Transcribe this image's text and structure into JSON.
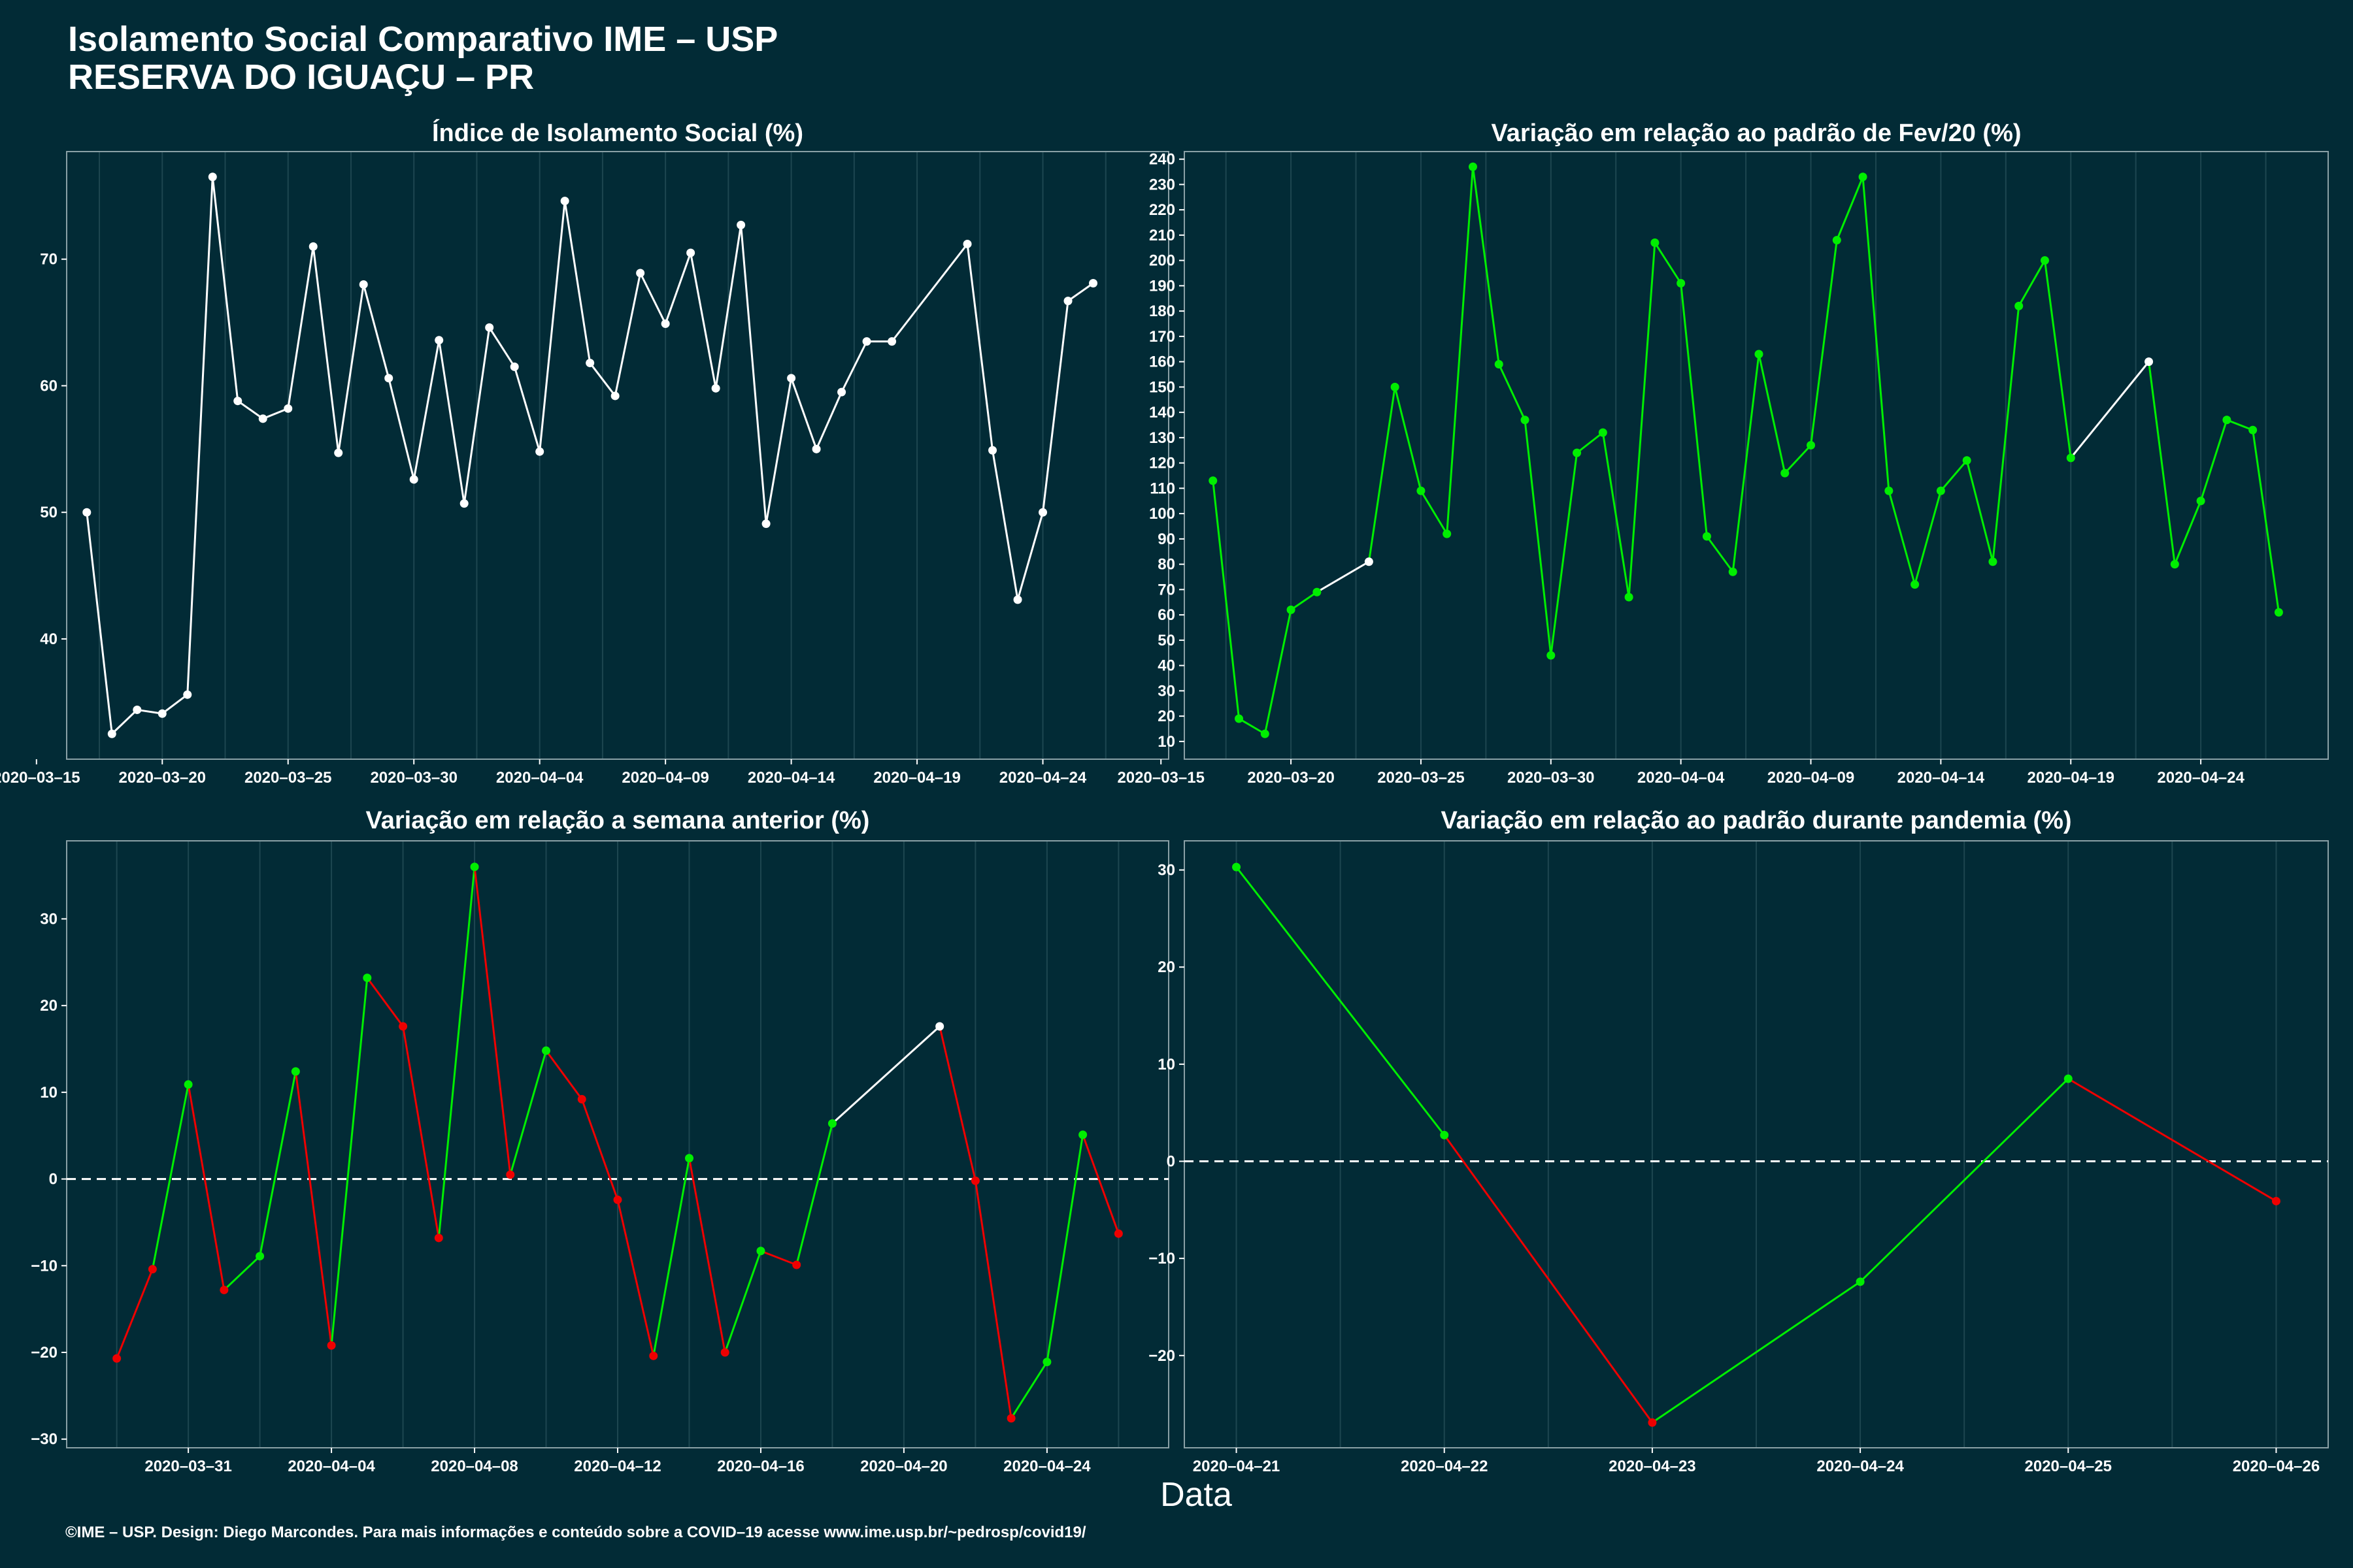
{
  "header": {
    "title_line1": "Isolamento Social Comparativo IME – USP",
    "title_line2": "RESERVA DO IGUAÇU – PR"
  },
  "xlabel": "Data",
  "footer": "©IME – USP. Design: Diego Marcondes. Para mais informações e conteúdo sobre a COVID–19 acesse www.ime.usp.br/~pedrosp/covid19/",
  "colors": {
    "background": "#022b36",
    "white": "#ffffff",
    "green": "#00ee00",
    "red": "#ee0000",
    "grid": "#1d4650"
  },
  "chart_data": [
    {
      "type": "line",
      "title": "Índice de Isolamento Social (%)",
      "x_start": "2020-03-17",
      "x": [
        "2020-03-17",
        "2020-03-18",
        "2020-03-19",
        "2020-03-20",
        "2020-03-21",
        "2020-03-22",
        "2020-03-23",
        "2020-03-24",
        "2020-03-25",
        "2020-03-26",
        "2020-03-27",
        "2020-03-28",
        "2020-03-29",
        "2020-03-30",
        "2020-03-31",
        "2020-04-01",
        "2020-04-02",
        "2020-04-03",
        "2020-04-04",
        "2020-04-05",
        "2020-04-06",
        "2020-04-07",
        "2020-04-08",
        "2020-04-09",
        "2020-04-10",
        "2020-04-11",
        "2020-04-12",
        "2020-04-13",
        "2020-04-14",
        "2020-04-15",
        "2020-04-16",
        "2020-04-17",
        "2020-04-18",
        "2020-04-21",
        "2020-04-22",
        "2020-04-23",
        "2020-04-24",
        "2020-04-25",
        "2020-04-26"
      ],
      "values": [
        50.0,
        32.5,
        34.4,
        34.1,
        35.6,
        76.5,
        58.8,
        57.4,
        58.2,
        71.0,
        54.7,
        68.0,
        60.6,
        52.6,
        63.6,
        50.7,
        64.6,
        61.5,
        54.8,
        74.6,
        61.8,
        59.2,
        68.9,
        64.9,
        70.5,
        59.8,
        72.7,
        49.1,
        60.6,
        55.0,
        59.5,
        63.5,
        63.5,
        71.2,
        54.9,
        43.1,
        50.0,
        66.7,
        68.1
      ],
      "segment_colors": [
        "white"
      ],
      "ylim": [
        30.5,
        78.5
      ],
      "yticks": [
        40,
        50,
        60,
        70
      ],
      "ytick_labels": [
        "40",
        "50",
        "60",
        "70"
      ],
      "xlim": [
        -0.8,
        43.0
      ],
      "xticks": [
        -2,
        3,
        8,
        13,
        18,
        23,
        28,
        33,
        38
      ],
      "xtick_labels": [
        "2020–03–15",
        "2020–03–20",
        "2020–03–25",
        "2020–03–30",
        "2020–04–04",
        "2020–04–09",
        "2020–04–14",
        "2020–04–19",
        "2020–04–24"
      ],
      "grid": true
    },
    {
      "type": "line",
      "title": "Variação em relação ao padrão de Fev/20 (%)",
      "x_start": "2020-03-17",
      "x": [
        "2020-03-17",
        "2020-03-18",
        "2020-03-19",
        "2020-03-20",
        "2020-03-21",
        "2020-03-23",
        "2020-03-24",
        "2020-03-25",
        "2020-03-26",
        "2020-03-27",
        "2020-03-28",
        "2020-03-29",
        "2020-03-30",
        "2020-03-31",
        "2020-04-01",
        "2020-04-02",
        "2020-04-03",
        "2020-04-04",
        "2020-04-05",
        "2020-04-06",
        "2020-04-07",
        "2020-04-08",
        "2020-04-09",
        "2020-04-10",
        "2020-04-11",
        "2020-04-12",
        "2020-04-13",
        "2020-04-14",
        "2020-04-15",
        "2020-04-16",
        "2020-04-17",
        "2020-04-18",
        "2020-04-19",
        "2020-04-22",
        "2020-04-23",
        "2020-04-24",
        "2020-04-25",
        "2020-04-26",
        "2020-04-27"
      ],
      "values": [
        113,
        19,
        13,
        62,
        69,
        81,
        150,
        109,
        92,
        237,
        159,
        137,
        44,
        124,
        132,
        67,
        207,
        191,
        91,
        77,
        163,
        116,
        127,
        208,
        233,
        109,
        72,
        109,
        121,
        81,
        182,
        200,
        122,
        160,
        80,
        105,
        137,
        133,
        61
      ],
      "segment_colors": [
        "green",
        "green",
        "green",
        "green",
        "white",
        "green",
        "green",
        "green",
        "green",
        "green",
        "green",
        "green",
        "green",
        "green",
        "green",
        "green",
        "green",
        "green",
        "green",
        "green",
        "green",
        "green",
        "green",
        "green",
        "green",
        "green",
        "green",
        "green",
        "green",
        "green",
        "green",
        "green",
        "white",
        "green",
        "green",
        "green",
        "green",
        "green"
      ],
      "ylim": [
        3,
        243
      ],
      "yticks": [
        10,
        20,
        30,
        40,
        50,
        60,
        70,
        80,
        90,
        100,
        110,
        120,
        130,
        140,
        150,
        160,
        170,
        180,
        190,
        200,
        210,
        220,
        230,
        240
      ],
      "ytick_labels": [
        "10",
        "20",
        "30",
        "40",
        "50",
        "60",
        "70",
        "80",
        "90",
        "100",
        "110",
        "120",
        "130",
        "140",
        "150",
        "160",
        "170",
        "180",
        "190",
        "200",
        "210",
        "220",
        "230",
        "240"
      ],
      "xlim": [
        -1.1,
        42.9
      ],
      "xticks": [
        -2,
        3,
        8,
        13,
        18,
        23,
        28,
        33,
        38
      ],
      "xtick_labels": [
        "2020–03–15",
        "2020–03–20",
        "2020–03–25",
        "2020–03–30",
        "2020–04–04",
        "2020–04–09",
        "2020–04–14",
        "2020–04–19",
        "2020–04–24"
      ],
      "grid": true
    },
    {
      "type": "line",
      "title": "Variação em relação a semana anterior (%)",
      "x_start": "2020-03-29",
      "x": [
        "2020-03-29",
        "2020-03-30",
        "2020-03-31",
        "2020-04-01",
        "2020-04-02",
        "2020-04-03",
        "2020-04-04",
        "2020-04-05",
        "2020-04-06",
        "2020-04-07",
        "2020-04-08",
        "2020-04-09",
        "2020-04-10",
        "2020-04-11",
        "2020-04-12",
        "2020-04-13",
        "2020-04-14",
        "2020-04-15",
        "2020-04-16",
        "2020-04-17",
        "2020-04-18",
        "2020-04-21",
        "2020-04-22",
        "2020-04-23",
        "2020-04-24",
        "2020-04-25",
        "2020-04-26"
      ],
      "values": [
        -20.7,
        -10.4,
        10.9,
        -12.8,
        -8.9,
        12.4,
        -19.2,
        23.2,
        17.6,
        -6.8,
        36.0,
        0.5,
        14.8,
        9.2,
        -2.4,
        -20.4,
        2.4,
        -20.0,
        -8.3,
        -9.9,
        6.4,
        17.6,
        -0.2,
        -27.6,
        -21.1,
        5.1,
        -6.3
      ],
      "segment_colors": [
        "red",
        "green",
        "red",
        "green",
        "green",
        "red",
        "green",
        "red",
        "red",
        "green",
        "red",
        "green",
        "red",
        "red",
        "red",
        "green",
        "red",
        "green",
        "red",
        "green",
        "white",
        "red",
        "red",
        "green",
        "green",
        "red"
      ],
      "reference_line": 0,
      "ylim": [
        -31,
        39
      ],
      "yticks": [
        -30,
        -20,
        -10,
        0,
        10,
        20,
        30
      ],
      "ytick_labels": [
        "−30",
        "−20",
        "−10",
        "0",
        "10",
        "20",
        "30"
      ],
      "xlim": [
        -1.4,
        29.4
      ],
      "xticks": [
        2,
        6,
        10,
        14,
        18,
        22,
        26
      ],
      "xtick_labels": [
        "2020–03–31",
        "2020–04–04",
        "2020–04–08",
        "2020–04–12",
        "2020–04–16",
        "2020–04–20",
        "2020–04–24"
      ],
      "grid": true
    },
    {
      "type": "line",
      "title": "Variação em relação ao padrão durante pandemia (%)",
      "x_start": "2020-04-21",
      "x": [
        "2020-04-21",
        "2020-04-22",
        "2020-04-23",
        "2020-04-24",
        "2020-04-25",
        "2020-04-26"
      ],
      "values": [
        30.3,
        2.7,
        -26.9,
        -12.4,
        8.5,
        -4.1
      ],
      "segment_colors": [
        "green",
        "red",
        "green",
        "green",
        "red"
      ],
      "reference_line": 0,
      "ylim": [
        -29.5,
        33.0
      ],
      "yticks": [
        -20,
        -10,
        0,
        10,
        20,
        30
      ],
      "ytick_labels": [
        "−20",
        "−10",
        "0",
        "10",
        "20",
        "30"
      ],
      "xlim": [
        -0.25,
        5.25
      ],
      "xticks": [
        0,
        1,
        2,
        3,
        4,
        5
      ],
      "xtick_labels": [
        "2020–04–21",
        "2020–04–22",
        "2020–04–23",
        "2020–04–24",
        "2020–04–25",
        "2020–04–26"
      ],
      "grid": true
    }
  ]
}
